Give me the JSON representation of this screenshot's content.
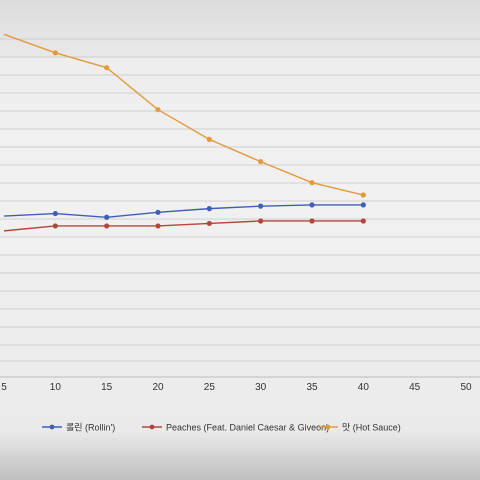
{
  "chart_data": {
    "type": "line",
    "x_ticks": [
      5,
      10,
      15,
      20,
      25,
      30,
      35,
      40,
      45,
      50
    ],
    "xlim": [
      5,
      50
    ],
    "x": [
      10,
      15,
      20,
      25,
      30,
      35,
      40
    ],
    "series": [
      {
        "name": "롤린 (Rollin')",
        "color": "#3f5fb4",
        "values": [
          7.0,
          7.3,
          6.9,
          6.6,
          6.4,
          6.3,
          6.3
        ]
      },
      {
        "name": "Peaches (Feat. Daniel Caesar & Giveon)",
        "color": "#b2473a",
        "values": [
          8.0,
          8.0,
          8.0,
          7.8,
          7.6,
          7.6,
          7.6
        ]
      },
      {
        "name": "맛 (Hot Sauce)",
        "color": "#e39a3c",
        "values": [
          -6.0,
          -4.8,
          -1.4,
          1.0,
          2.8,
          4.5,
          5.5
        ]
      }
    ],
    "y_edge_points": [
      {
        "series": 0,
        "x": 5,
        "y": 7.2
      },
      {
        "series": 1,
        "x": 5,
        "y": 8.4
      },
      {
        "series": 2,
        "x": 5,
        "y": -7.5
      }
    ],
    "ylim": [
      -7.2,
      20.3
    ],
    "grid": true,
    "legend_position": "bottom"
  }
}
